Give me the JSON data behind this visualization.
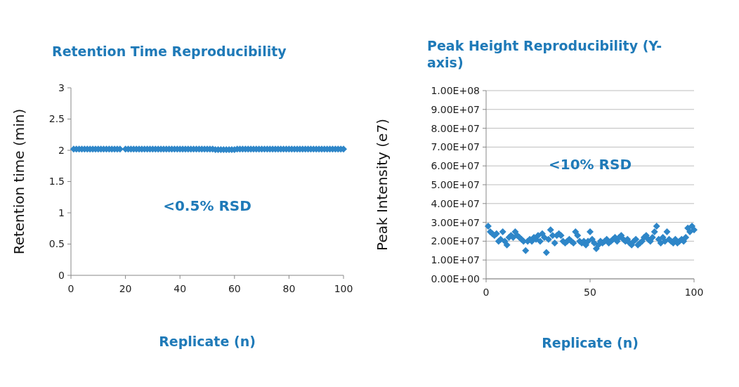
{
  "chart_data": [
    {
      "type": "scatter",
      "title": "Retention Time Reproducibility",
      "xlabel": "Replicate (n)",
      "ylabel": "Retention time (min)",
      "annotations": [
        "<0.5% RSD"
      ],
      "x": [
        1,
        2,
        3,
        4,
        5,
        6,
        7,
        8,
        9,
        10,
        11,
        12,
        13,
        14,
        15,
        16,
        17,
        18,
        20,
        21,
        22,
        23,
        24,
        25,
        26,
        27,
        28,
        29,
        30,
        31,
        32,
        33,
        34,
        35,
        36,
        37,
        38,
        39,
        40,
        41,
        42,
        43,
        44,
        45,
        46,
        47,
        48,
        49,
        50,
        51,
        52,
        53,
        54,
        55,
        56,
        57,
        58,
        59,
        60,
        61,
        62,
        63,
        64,
        65,
        66,
        67,
        68,
        69,
        70,
        71,
        72,
        73,
        74,
        75,
        76,
        77,
        78,
        79,
        80,
        81,
        82,
        83,
        84,
        85,
        86,
        87,
        88,
        89,
        90,
        91,
        92,
        93,
        94,
        95,
        96,
        97,
        98,
        99,
        100
      ],
      "series": [
        {
          "color": "#2e86c8",
          "values": [
            2.02,
            2.02,
            2.02,
            2.02,
            2.02,
            2.02,
            2.02,
            2.02,
            2.02,
            2.02,
            2.02,
            2.02,
            2.02,
            2.02,
            2.02,
            2.02,
            2.02,
            2.02,
            2.02,
            2.02,
            2.02,
            2.02,
            2.02,
            2.02,
            2.02,
            2.02,
            2.02,
            2.02,
            2.02,
            2.02,
            2.02,
            2.02,
            2.02,
            2.02,
            2.02,
            2.02,
            2.02,
            2.02,
            2.02,
            2.02,
            2.02,
            2.02,
            2.02,
            2.02,
            2.02,
            2.02,
            2.02,
            2.02,
            2.02,
            2.02,
            2.02,
            2.01,
            2.01,
            2.01,
            2.01,
            2.01,
            2.01,
            2.01,
            2.01,
            2.02,
            2.02,
            2.02,
            2.02,
            2.02,
            2.02,
            2.02,
            2.02,
            2.02,
            2.02,
            2.02,
            2.02,
            2.02,
            2.02,
            2.02,
            2.02,
            2.02,
            2.02,
            2.02,
            2.02,
            2.02,
            2.02,
            2.02,
            2.02,
            2.02,
            2.02,
            2.02,
            2.02,
            2.02,
            2.02,
            2.02,
            2.02,
            2.02,
            2.02,
            2.02,
            2.02,
            2.02,
            2.02,
            2.02,
            2.02
          ]
        }
      ],
      "xlim": [
        0,
        100
      ],
      "xticks": [
        0,
        20,
        40,
        60,
        80,
        100
      ],
      "ylim": [
        0,
        3
      ],
      "yticks": [
        0,
        0.5,
        1,
        1.5,
        2,
        2.5,
        3
      ],
      "grid": false,
      "marker": "diamond"
    },
    {
      "type": "scatter",
      "title": "Peak Height Reproducibility (Y-axis)",
      "xlabel": "Replicate (n)",
      "ylabel": "Peak Intensity (e7)",
      "annotations": [
        "<10% RSD"
      ],
      "x": [
        1,
        2,
        3,
        4,
        5,
        6,
        7,
        8,
        9,
        10,
        11,
        12,
        13,
        14,
        15,
        16,
        17,
        18,
        19,
        20,
        21,
        22,
        23,
        24,
        25,
        26,
        27,
        28,
        29,
        30,
        31,
        32,
        33,
        34,
        35,
        36,
        37,
        38,
        39,
        40,
        41,
        42,
        43,
        44,
        45,
        46,
        47,
        48,
        49,
        50,
        51,
        52,
        53,
        54,
        55,
        56,
        57,
        58,
        59,
        60,
        61,
        62,
        63,
        64,
        65,
        66,
        67,
        68,
        69,
        70,
        71,
        72,
        73,
        74,
        75,
        76,
        77,
        78,
        79,
        80,
        81,
        82,
        83,
        84,
        85,
        86,
        87,
        88,
        89,
        90,
        91,
        92,
        93,
        94,
        95,
        96,
        97,
        98,
        99,
        100
      ],
      "series": [
        {
          "color": "#2e86c8",
          "values": [
            28000000,
            25000000,
            24000000,
            23000000,
            24000000,
            20000000,
            21000000,
            25000000,
            20000000,
            18000000,
            22000000,
            23000000,
            22000000,
            25000000,
            23000000,
            22000000,
            21000000,
            20000000,
            15000000,
            20000000,
            21000000,
            20000000,
            22000000,
            21000000,
            23000000,
            20000000,
            24000000,
            22000000,
            14000000,
            21000000,
            26000000,
            23000000,
            19000000,
            23000000,
            24000000,
            23000000,
            20000000,
            19000000,
            20000000,
            21000000,
            20000000,
            19000000,
            25000000,
            23000000,
            20000000,
            19000000,
            20000000,
            18000000,
            20000000,
            25000000,
            21000000,
            19000000,
            16000000,
            18000000,
            20000000,
            19000000,
            20000000,
            21000000,
            19000000,
            20000000,
            21000000,
            22000000,
            20000000,
            22000000,
            23000000,
            21000000,
            20000000,
            21000000,
            19000000,
            18000000,
            20000000,
            21000000,
            18000000,
            19000000,
            20000000,
            22000000,
            23000000,
            21000000,
            20000000,
            22000000,
            25000000,
            28000000,
            21000000,
            19000000,
            22000000,
            20000000,
            25000000,
            21000000,
            20000000,
            19000000,
            21000000,
            19000000,
            20000000,
            21000000,
            20000000,
            22000000,
            27000000,
            25000000,
            28000000,
            26000000
          ]
        }
      ],
      "xlim": [
        0,
        100
      ],
      "xticks": [
        0,
        50,
        100
      ],
      "ylim": [
        0,
        100000000
      ],
      "yticks": [
        {
          "value": 0,
          "label": "0.00E+00"
        },
        {
          "value": 10000000,
          "label": "1.00E+07"
        },
        {
          "value": 20000000,
          "label": "2.00E+07"
        },
        {
          "value": 30000000,
          "label": "3.00E+07"
        },
        {
          "value": 40000000,
          "label": "4.00E+07"
        },
        {
          "value": 50000000,
          "label": "5.00E+07"
        },
        {
          "value": 60000000,
          "label": "6.00E+07"
        },
        {
          "value": 70000000,
          "label": "7.00E+07"
        },
        {
          "value": 80000000,
          "label": "8.00E+07"
        },
        {
          "value": 90000000,
          "label": "9.00E+07"
        },
        {
          "value": 100000000,
          "label": "1.00E+08"
        }
      ],
      "grid": "y",
      "marker": "diamond"
    }
  ]
}
